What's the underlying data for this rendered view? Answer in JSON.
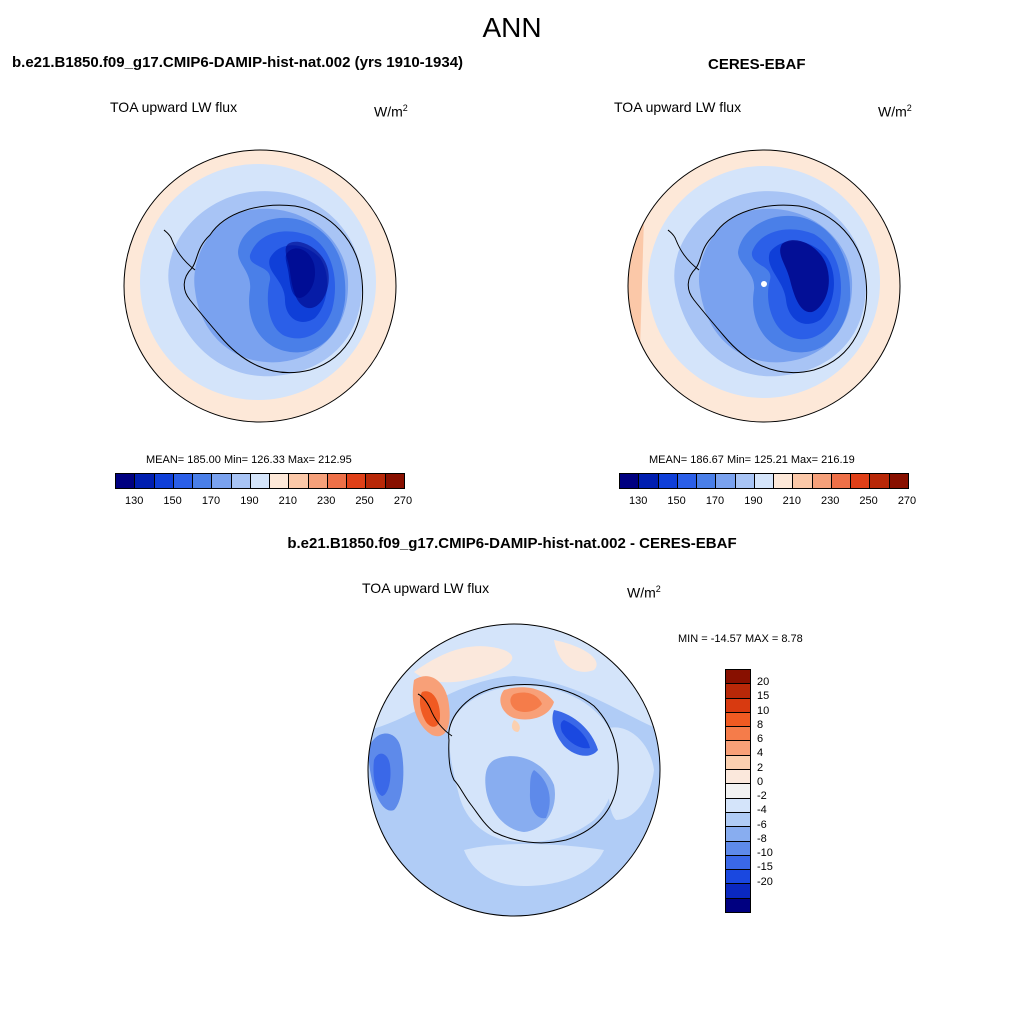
{
  "page_title": "ANN",
  "panels": [
    {
      "title": "b.e21.B1850.f09_g17.CMIP6-DAMIP-hist-nat.002 (yrs 1910-1934)",
      "variable": "TOA upward LW flux",
      "unit_base": "W/m",
      "unit_exp": "2",
      "stats": "MEAN= 185.00  Min= 126.33  Max= 212.95",
      "mean": 185.0,
      "min": 126.33,
      "max": 212.95
    },
    {
      "title": "CERES-EBAF",
      "variable": "TOA upward LW flux",
      "unit_base": "W/m",
      "unit_exp": "2",
      "stats": "MEAN= 186.67  Min= 125.21  Max= 216.19",
      "mean": 186.67,
      "min": 125.21,
      "max": 216.19
    },
    {
      "title": "b.e21.B1850.f09_g17.CMIP6-DAMIP-hist-nat.002 - CERES-EBAF",
      "variable": "TOA upward LW flux",
      "unit_base": "W/m",
      "unit_exp": "2",
      "stats": "MIN = -14.57 MAX =   8.78",
      "min": -14.57,
      "max": 8.78
    }
  ],
  "colorbar_main": {
    "colors": [
      "#000080",
      "#001eb0",
      "#0f3fd8",
      "#2b5fe8",
      "#4a7fe8",
      "#7aa2ef",
      "#a8c4f5",
      "#d4e4fa",
      "#fde8d8",
      "#fbc8a8",
      "#f5a07a",
      "#ee7048",
      "#e04018",
      "#b82808",
      "#881000"
    ],
    "tick_labels": [
      "130",
      "150",
      "170",
      "190",
      "210",
      "230",
      "250",
      "270"
    ]
  },
  "colorbar_diff": {
    "colors": [
      "#881000",
      "#b82808",
      "#d83a10",
      "#f05a22",
      "#f57c4a",
      "#f8a078",
      "#fbd0b0",
      "#fbe8dc",
      "#f2f2f2",
      "#d4e4fa",
      "#b0ccf6",
      "#88adf0",
      "#5e8aea",
      "#3a68e8",
      "#1a48e0",
      "#0a28c0",
      "#000080"
    ],
    "tick_labels": [
      "20",
      "15",
      "10",
      "8",
      "6",
      "4",
      "2",
      "0",
      "-2",
      "-4",
      "-6",
      "-8",
      "-10",
      "-15",
      "-20"
    ]
  }
}
